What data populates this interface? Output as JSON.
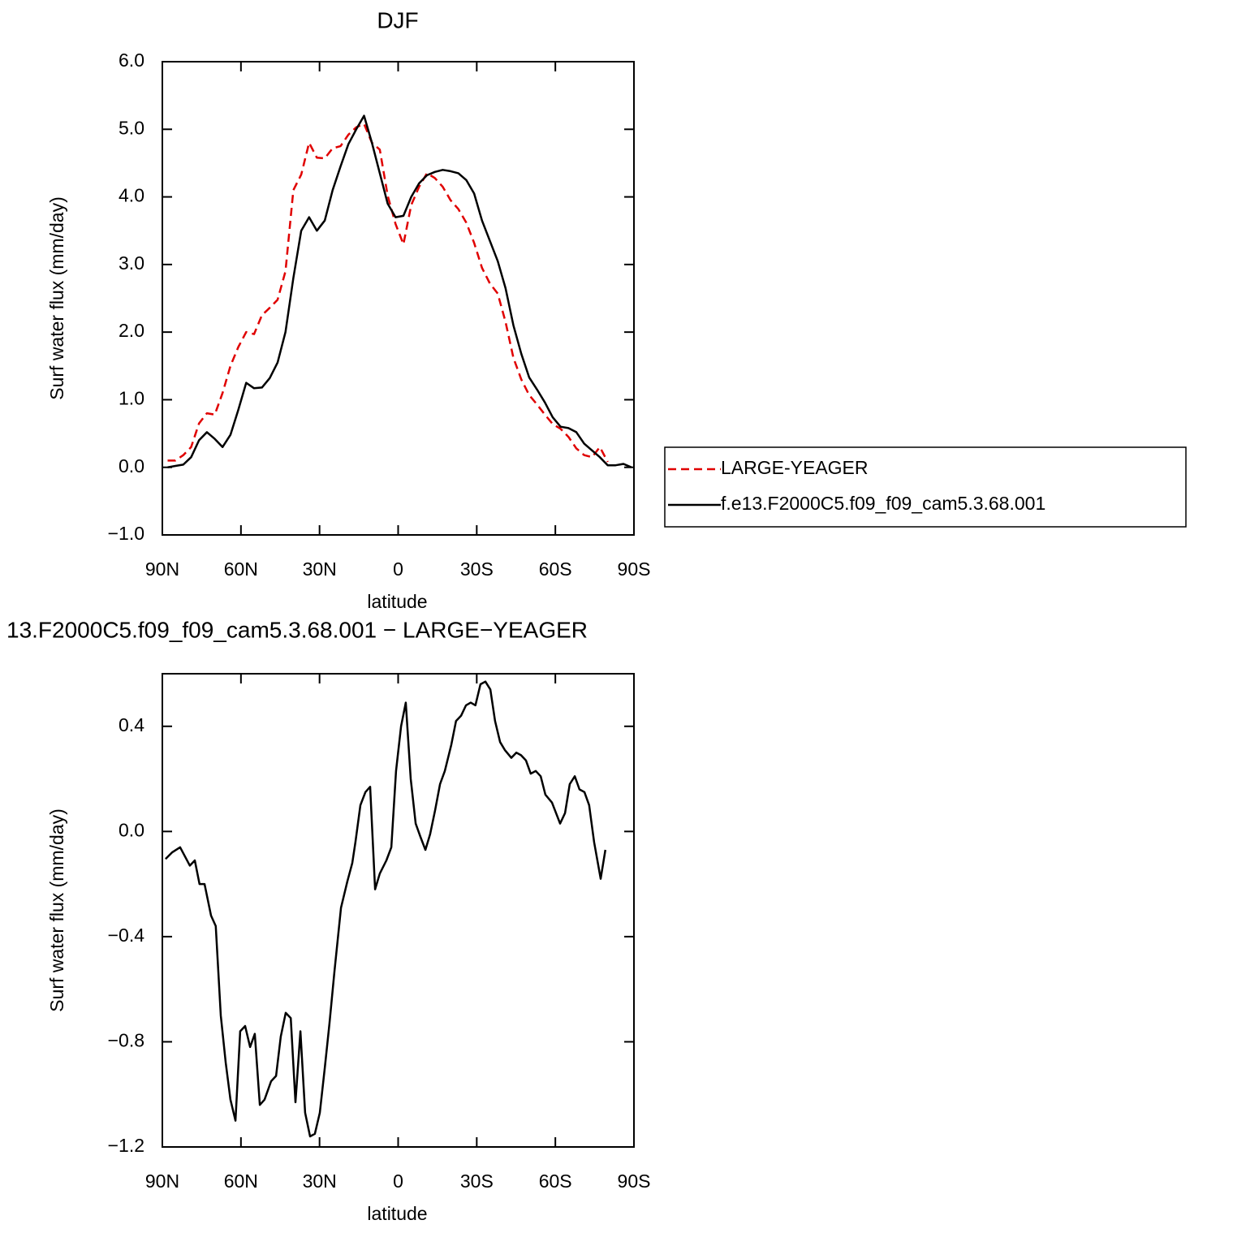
{
  "chart_data": [
    {
      "type": "line",
      "title": "DJF",
      "x_label": "latitude",
      "y_label": "Surf water flux (mm/day)",
      "x": [
        88,
        85,
        82,
        79,
        76,
        73,
        70,
        67,
        64,
        61,
        58,
        55,
        52,
        49,
        46,
        43,
        40,
        37,
        34,
        31,
        28,
        25,
        22,
        19,
        16,
        13,
        10,
        7,
        4,
        1,
        -2,
        -5,
        -8,
        -11,
        -14,
        -17,
        -20,
        -23,
        -26,
        -29,
        -32,
        -35,
        -38,
        -41,
        -44,
        -47,
        -50,
        -53,
        -56,
        -59,
        -62,
        -65,
        -68,
        -71,
        -74,
        -77,
        -80,
        -83,
        -86,
        -89
      ],
      "series": [
        {
          "name": "LARGE-YEAGER",
          "color": "#e00000",
          "linestyle": "dashed",
          "values": [
            0.1,
            0.1,
            0.18,
            0.3,
            0.65,
            0.8,
            0.78,
            1.1,
            1.5,
            1.78,
            2.0,
            1.97,
            2.25,
            2.36,
            2.48,
            2.9,
            4.1,
            4.33,
            4.8,
            4.58,
            4.57,
            4.72,
            4.75,
            4.92,
            5.03,
            5.08,
            4.8,
            4.7,
            4.02,
            3.6,
            3.3,
            3.88,
            4.15,
            4.35,
            4.28,
            4.15,
            3.95,
            3.82,
            3.62,
            3.32,
            2.95,
            2.72,
            2.57,
            2.15,
            1.62,
            1.3,
            1.07,
            0.93,
            0.78,
            0.64,
            0.57,
            0.45,
            0.28,
            0.18,
            0.15,
            0.3,
            0.08,
            null,
            null,
            null
          ]
        },
        {
          "name": "f.e13.F2000C5.f09_f09_cam5.3.68.001",
          "color": "#000000",
          "linestyle": "solid",
          "values": [
            0.0,
            0.02,
            0.04,
            0.15,
            0.4,
            0.52,
            0.42,
            0.3,
            0.48,
            0.85,
            1.25,
            1.17,
            1.18,
            1.32,
            1.55,
            2.0,
            2.8,
            3.5,
            3.7,
            3.5,
            3.65,
            4.1,
            4.45,
            4.78,
            5.0,
            5.2,
            4.8,
            4.35,
            3.9,
            3.7,
            3.72,
            4.0,
            4.2,
            4.32,
            4.37,
            4.4,
            4.38,
            4.35,
            4.25,
            4.05,
            3.65,
            3.35,
            3.05,
            2.65,
            2.1,
            1.68,
            1.33,
            1.15,
            0.96,
            0.74,
            0.6,
            0.58,
            0.52,
            0.35,
            0.25,
            0.15,
            0.03,
            0.03,
            0.05,
            0.0
          ]
        }
      ],
      "xlim": [
        90,
        -90
      ],
      "xticks": [
        {
          "value": 90,
          "label": "90N"
        },
        {
          "value": 60,
          "label": "60N"
        },
        {
          "value": 30,
          "label": "30N"
        },
        0,
        {
          "value": -30,
          "label": "30S"
        },
        {
          "value": -60,
          "label": "60S"
        },
        {
          "value": -90,
          "label": "90S"
        }
      ],
      "ylim": [
        -1,
        6
      ],
      "yticks": [
        {
          "value": -1,
          "label": "−1.0"
        },
        {
          "value": 0,
          "label": "0.0"
        },
        {
          "value": 1,
          "label": "1.0"
        },
        {
          "value": 2,
          "label": "2.0"
        },
        {
          "value": 3,
          "label": "3.0"
        },
        {
          "value": 4,
          "label": "4.0"
        },
        {
          "value": 5,
          "label": "5.0"
        },
        {
          "value": 6,
          "label": "6.0"
        }
      ],
      "legend": "right"
    },
    {
      "type": "line",
      "title": "13.F2000C5.f09_f09_cam5.3.68.001 − LARGE−YEAGER",
      "x_label": "latitude",
      "y_label": "Surf water flux (mm/day)",
      "x": [
        88.8,
        86.3,
        83.2,
        79.5,
        77.6,
        75.8,
        73.9,
        71.4,
        69.6,
        67.7,
        65.8,
        64,
        62.1,
        60.3,
        58.4,
        56.5,
        54.7,
        52.8,
        51,
        48.5,
        46.6,
        44.8,
        42.9,
        41,
        39.2,
        37.3,
        35.5,
        33.6,
        31.8,
        29.9,
        28,
        26.2,
        24.3,
        21.8,
        19.4,
        17.5,
        16.3,
        14.4,
        12.5,
        10.7,
        8.8,
        7,
        4.5,
        2.6,
        0.8,
        -1.1,
        -2.9,
        -4.8,
        -6.7,
        -8.5,
        -10.4,
        -12.2,
        -14.1,
        -16,
        -17.8,
        -20.3,
        -22.1,
        -24,
        -25.9,
        -27.7,
        -29.5,
        -31.4,
        -33.3,
        -35.2,
        -37,
        -38.9,
        -40.7,
        -43.2,
        -45.1,
        -46.9,
        -48.8,
        -50.6,
        -52.5,
        -54.4,
        -56.2,
        -58.7,
        -61.8,
        -63.7,
        -65.5,
        -67.4,
        -69.2,
        -71.1,
        -72.9,
        -74.8,
        -77.3,
        -79.1
      ],
      "series": [
        {
          "color": "#000000",
          "linestyle": "solid",
          "values": [
            -0.105,
            -0.08,
            -0.06,
            -0.13,
            -0.11,
            -0.2,
            -0.2,
            -0.32,
            -0.36,
            -0.7,
            -0.88,
            -1.02,
            -1.1,
            -0.76,
            -0.74,
            -0.82,
            -0.77,
            -1.04,
            -1.02,
            -0.95,
            -0.93,
            -0.78,
            -0.69,
            -0.71,
            -1.03,
            -0.76,
            -1.07,
            -1.16,
            -1.15,
            -1.07,
            -0.9,
            -0.73,
            -0.53,
            -0.29,
            -0.19,
            -0.12,
            -0.04,
            0.1,
            0.15,
            0.17,
            -0.22,
            -0.16,
            -0.11,
            -0.06,
            0.23,
            0.4,
            0.49,
            0.2,
            0.03,
            -0.02,
            -0.07,
            -0.01,
            0.08,
            0.18,
            0.23,
            0.33,
            0.42,
            0.44,
            0.48,
            0.49,
            0.48,
            0.56,
            0.57,
            0.54,
            0.42,
            0.34,
            0.31,
            0.28,
            0.3,
            0.29,
            0.27,
            0.22,
            0.23,
            0.21,
            0.14,
            0.11,
            0.03,
            0.07,
            0.18,
            0.21,
            0.16,
            0.15,
            0.1,
            -0.04,
            -0.18,
            -0.07
          ]
        }
      ],
      "xlim": [
        90,
        -90
      ],
      "xticks": [
        {
          "value": 90,
          "label": "90N"
        },
        {
          "value": 60,
          "label": "60N"
        },
        {
          "value": 30,
          "label": "30N"
        },
        0,
        {
          "value": -30,
          "label": "30S"
        },
        {
          "value": -60,
          "label": "60S"
        },
        {
          "value": -90,
          "label": "90S"
        }
      ],
      "ylim": [
        -1.2,
        0.6
      ],
      "yticks": [
        {
          "value": -1.2,
          "label": "−1.2"
        },
        {
          "value": -0.8,
          "label": "−0.8"
        },
        {
          "value": -0.4,
          "label": "−0.4"
        },
        {
          "value": 0,
          "label": "0.0"
        },
        0.4
      ]
    }
  ]
}
